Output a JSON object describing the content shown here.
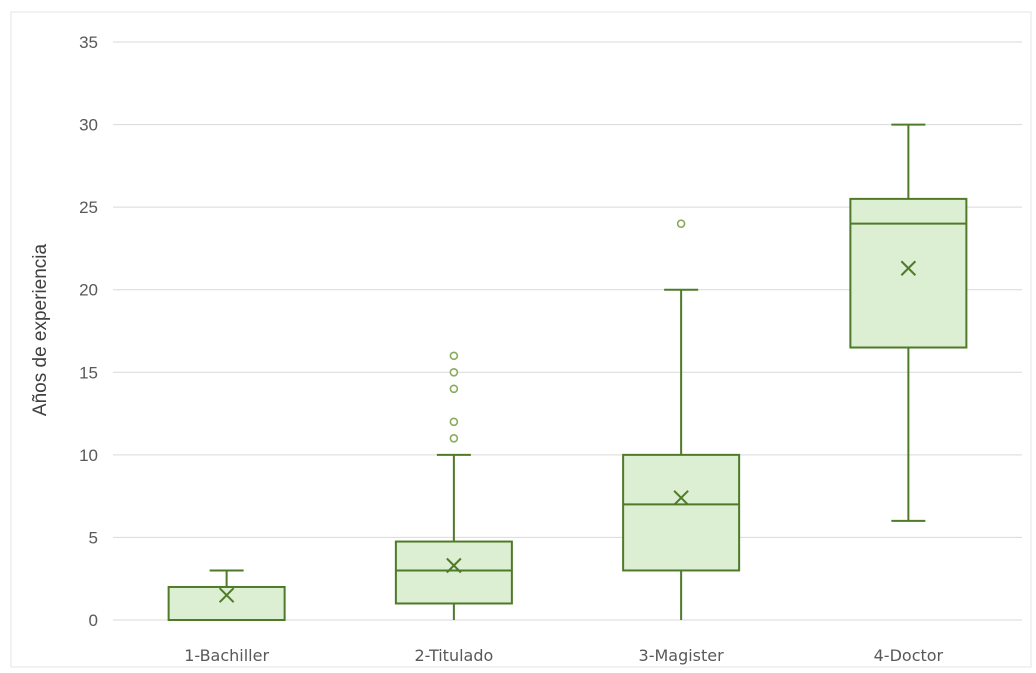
{
  "chart_data": {
    "type": "boxplot",
    "ylabel": "Años de experiencia",
    "ylim": [
      0,
      35
    ],
    "yticks": [
      0,
      5,
      10,
      15,
      20,
      25,
      30,
      35
    ],
    "grid": true,
    "legend": "none",
    "colors": {
      "box_fill": "#dcefd2",
      "box_stroke": "#4f7a28",
      "outlier_stroke": "#8aaa5a",
      "grid": "#d9d9d9"
    },
    "categories": [
      "1-Bachiller",
      "2-Titulado",
      "3-Magister",
      "4-Doctor"
    ],
    "series": [
      {
        "whisker_low": 0,
        "q1": 0,
        "median": 0,
        "q3": 2,
        "whisker_high": 3,
        "mean": 1.5,
        "outliers": []
      },
      {
        "whisker_low": 0,
        "q1": 1,
        "median": 3,
        "q3": 4.75,
        "whisker_high": 10,
        "mean": 3.3,
        "outliers": [
          11,
          12,
          14,
          15,
          16
        ]
      },
      {
        "whisker_low": 0,
        "q1": 3,
        "median": 7,
        "q3": 10,
        "whisker_high": 20,
        "mean": 7.4,
        "outliers": [
          24
        ]
      },
      {
        "whisker_low": 6,
        "q1": 16.5,
        "median": 24,
        "q3": 25.5,
        "whisker_high": 30,
        "mean": 21.3,
        "outliers": []
      }
    ]
  }
}
